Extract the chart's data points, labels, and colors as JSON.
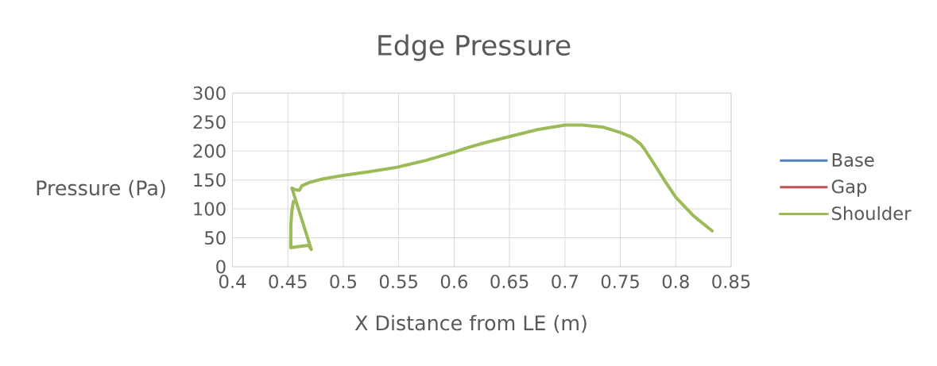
{
  "chart_data": {
    "type": "line",
    "title": "Edge Pressure",
    "xlabel": "X Distance from LE (m)",
    "ylabel": "Pressure (Pa)",
    "x": [
      0.455,
      0.4535,
      0.4527,
      0.4526,
      0.46,
      0.4686,
      0.4711,
      0.4536,
      0.457,
      0.4603,
      0.4627,
      0.4698,
      0.4818,
      0.5009,
      0.5224,
      0.5486,
      0.575,
      0.6,
      0.6125,
      0.6251,
      0.65,
      0.6752,
      0.7003,
      0.7158,
      0.7349,
      0.75,
      0.76,
      0.7683,
      0.7719,
      0.7827,
      0.7899,
      0.8001,
      0.816,
      0.8328
    ],
    "series": [
      {
        "name": "Base",
        "color": "#4f81bd",
        "values": [
          null,
          null,
          null,
          null,
          null,
          null,
          null,
          null,
          null,
          null,
          null,
          null,
          null,
          null,
          null,
          null,
          null,
          null,
          null,
          null,
          null,
          null,
          null,
          null,
          null,
          null,
          null,
          null,
          null,
          null,
          null,
          null,
          null,
          null
        ]
      },
      {
        "name": "Gap",
        "color": "#c0504d",
        "values": [
          null,
          null,
          null,
          null,
          null,
          null,
          null,
          null,
          null,
          null,
          null,
          null,
          null,
          null,
          null,
          null,
          null,
          null,
          null,
          null,
          null,
          null,
          null,
          null,
          null,
          null,
          null,
          null,
          null,
          null,
          null,
          null,
          null,
          null
        ]
      },
      {
        "name": "Shoulder",
        "color": "#9bbb59",
        "values": [
          113,
          95,
          72,
          33,
          35,
          37,
          30,
          136,
          133,
          132,
          140,
          146,
          152,
          158,
          164,
          172,
          184,
          198,
          206,
          213,
          225,
          237,
          245,
          245,
          241,
          232,
          224,
          212,
          203,
          171,
          149,
          120,
          88,
          62
        ]
      }
    ],
    "xlim": [
      0.4,
      0.85
    ],
    "xticks": [
      0.4,
      0.45,
      0.5,
      0.55,
      0.6,
      0.65,
      0.7,
      0.75,
      0.8,
      0.85
    ],
    "ylim": [
      0,
      300
    ],
    "yticks": [
      0,
      50,
      100,
      150,
      200,
      250,
      300
    ],
    "grid": true,
    "legend": "right",
    "marker": "none",
    "line_style": "solid"
  }
}
